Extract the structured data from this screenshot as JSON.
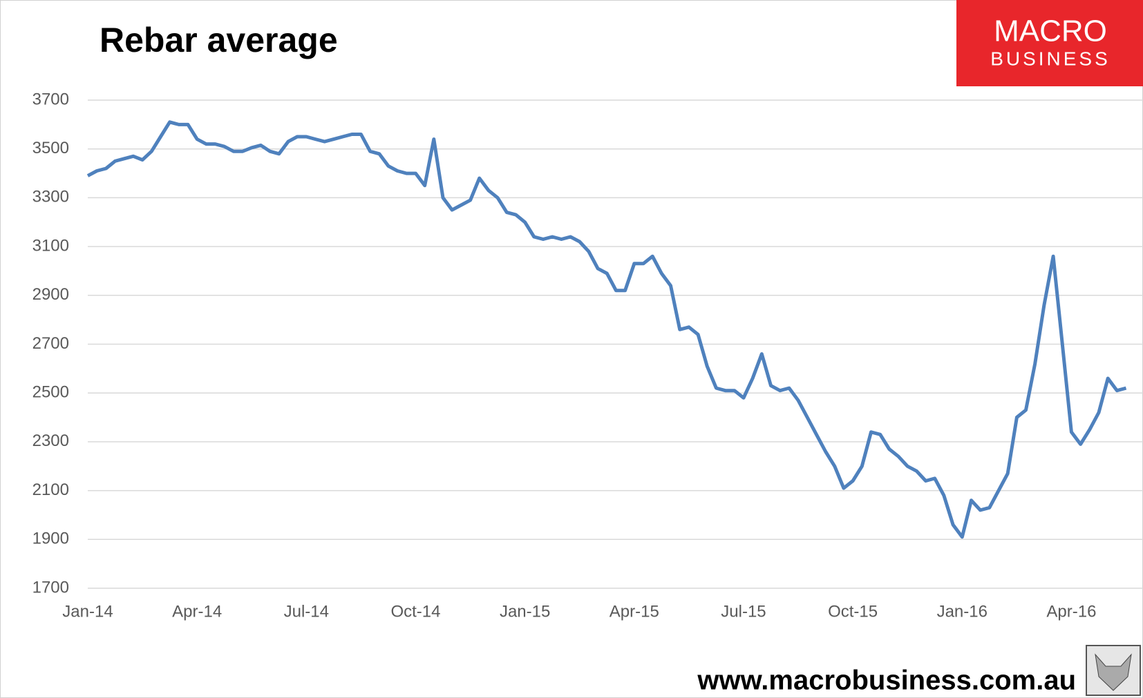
{
  "chart_data": {
    "type": "line",
    "title": "Rebar average",
    "categories": [
      "Jan-14",
      null,
      null,
      null,
      null,
      null,
      null,
      null,
      null,
      null,
      null,
      null,
      "Apr-14",
      null,
      null,
      null,
      null,
      null,
      null,
      null,
      null,
      null,
      null,
      null,
      "Jul-14",
      null,
      null,
      null,
      null,
      null,
      null,
      null,
      null,
      null,
      null,
      null,
      "Oct-14",
      null,
      null,
      null,
      null,
      null,
      null,
      null,
      null,
      null,
      null,
      null,
      "Jan-15",
      null,
      null,
      null,
      null,
      null,
      null,
      null,
      null,
      null,
      null,
      null,
      "Apr-15",
      null,
      null,
      null,
      null,
      null,
      null,
      null,
      null,
      null,
      null,
      null,
      "Jul-15",
      null,
      null,
      null,
      null,
      null,
      null,
      null,
      null,
      null,
      null,
      null,
      "Oct-15",
      null,
      null,
      null,
      null,
      null,
      null,
      null,
      null,
      null,
      null,
      null,
      "Jan-16",
      null,
      null,
      null,
      null,
      null,
      null,
      null,
      null,
      null,
      null,
      null,
      "Apr-16",
      null,
      null,
      null,
      null,
      null,
      null
    ],
    "series": [
      {
        "name": "Rebar average",
        "color": "#4f81bd",
        "values": [
          3390,
          3410,
          3420,
          3450,
          3460,
          3470,
          3455,
          3490,
          3550,
          3610,
          3600,
          3600,
          3540,
          3520,
          3520,
          3510,
          3490,
          3490,
          3505,
          3515,
          3490,
          3480,
          3530,
          3550,
          3550,
          3540,
          3530,
          3540,
          3550,
          3560,
          3560,
          3490,
          3480,
          3430,
          3410,
          3400,
          3400,
          3350,
          3540,
          3300,
          3250,
          3270,
          3290,
          3380,
          3330,
          3300,
          3240,
          3230,
          3200,
          3140,
          3130,
          3140,
          3130,
          3140,
          3120,
          3080,
          3010,
          2990,
          2920,
          2920,
          3030,
          3030,
          3060,
          2990,
          2940,
          2760,
          2770,
          2740,
          2610,
          2520,
          2510,
          2510,
          2480,
          2560,
          2660,
          2530,
          2510,
          2520,
          2470,
          2400,
          2330,
          2260,
          2200,
          2110,
          2140,
          2200,
          2340,
          2330,
          2270,
          2240,
          2200,
          2180,
          2140,
          2150,
          2080,
          1960,
          1910,
          2060,
          2020,
          2030,
          2100,
          2170,
          2400,
          2430,
          2620,
          2860,
          3060,
          2700,
          2340,
          2290,
          2350,
          2420,
          2560,
          2510,
          2520
        ]
      }
    ],
    "ylim": [
      1700,
      3700
    ],
    "yticks": [
      1700,
      1900,
      2100,
      2300,
      2500,
      2700,
      2900,
      3100,
      3300,
      3500,
      3700
    ],
    "grid": true
  },
  "branding": {
    "logo_top": "MACRO",
    "logo_bottom": "BUSINESS",
    "website": "www.macrobusiness.com.au"
  }
}
